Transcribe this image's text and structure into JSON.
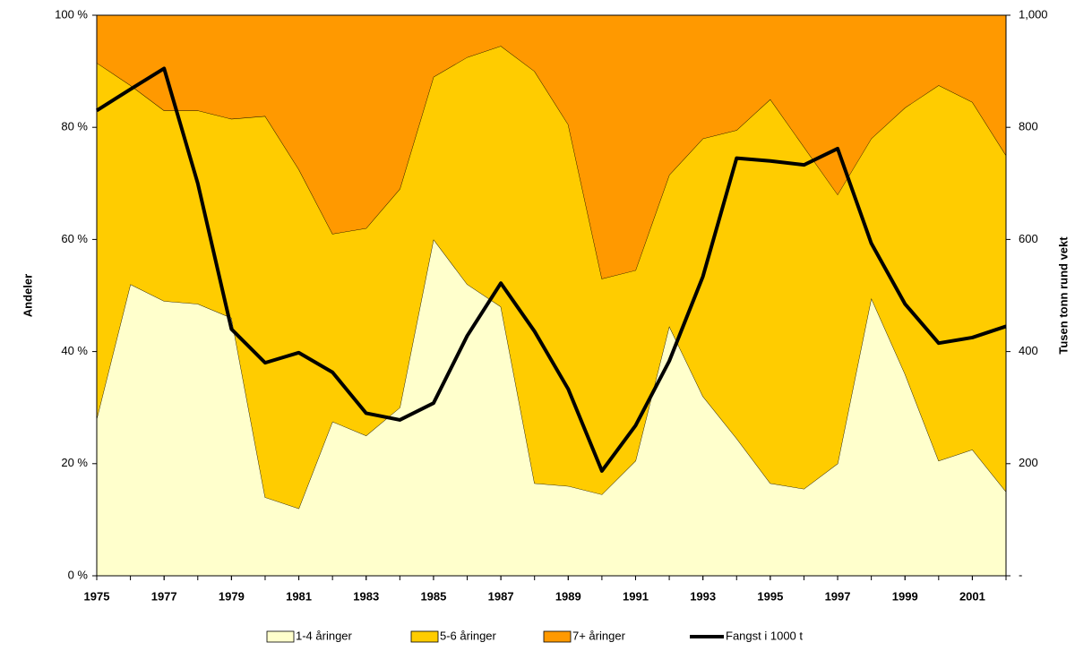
{
  "chart_data": {
    "type": "stacked_area",
    "x": [
      1975,
      1976,
      1977,
      1978,
      1979,
      1980,
      1981,
      1982,
      1983,
      1984,
      1985,
      1986,
      1987,
      1988,
      1989,
      1990,
      1991,
      1992,
      1993,
      1994,
      1995,
      1996,
      1997,
      1998,
      1999,
      2000,
      2001,
      2002
    ],
    "xlim": [
      1975,
      2002
    ],
    "xticks": [
      1975,
      1977,
      1979,
      1981,
      1983,
      1985,
      1987,
      1989,
      1991,
      1993,
      1995,
      1997,
      1999,
      2001
    ],
    "ylabel": "Andeler",
    "y2label": "Tusen tonn rund vekt",
    "ylim": [
      0,
      100
    ],
    "yticks": [
      {
        "value": 0,
        "label": "0 %"
      },
      {
        "value": 20,
        "label": "20 %"
      },
      {
        "value": 40,
        "label": "40 %"
      },
      {
        "value": 60,
        "label": "60 %"
      },
      {
        "value": 80,
        "label": "80 %"
      },
      {
        "value": 100,
        "label": "100 %"
      }
    ],
    "y2lim": [
      0,
      1000
    ],
    "y2ticks": [
      {
        "value": 0,
        "label": "-"
      },
      200,
      400,
      600,
      800,
      {
        "value": 1000,
        "label": "1,000"
      }
    ],
    "legend": "bottom",
    "series": [
      {
        "name": "1-4 åringer",
        "color": "#ffffcc",
        "values": [
          28,
          52,
          49,
          48.5,
          46,
          14,
          12,
          27.5,
          25,
          30,
          60,
          52,
          48,
          16.5,
          16,
          14.5,
          20.5,
          44.5,
          32,
          24.5,
          16.5,
          15.5,
          20,
          49.5,
          36,
          20.5,
          22.5,
          15
        ]
      },
      {
        "name": "5-6 åringer",
        "color": "#ffcc00",
        "values": [
          63.5,
          35.5,
          34,
          34.5,
          35.5,
          68,
          60.5,
          33.5,
          37,
          39,
          29,
          40.5,
          46.5,
          73.5,
          64.5,
          38.5,
          34,
          27,
          46,
          55,
          68.5,
          61,
          48,
          28.5,
          47.5,
          67,
          62,
          60
        ]
      },
      {
        "name": "7+ åringer",
        "color": "#ff9900",
        "values": [
          8.5,
          12.5,
          17,
          17,
          18.5,
          18,
          27.5,
          39,
          38,
          31,
          11,
          7.5,
          5.5,
          10,
          19.5,
          47,
          45.5,
          28.5,
          22,
          20.5,
          15,
          23.5,
          32,
          22,
          16.5,
          12.5,
          15.5,
          25
        ]
      },
      {
        "name": "Fangst i 1000 t",
        "color": "#000000",
        "type": "line",
        "axis": "y2",
        "values": [
          830,
          868,
          905,
          700,
          440,
          380,
          398,
          363,
          290,
          278,
          308,
          428,
          522,
          436,
          333,
          187,
          268,
          383,
          534,
          745,
          740,
          733,
          762,
          593,
          485,
          415,
          425,
          445
        ]
      }
    ]
  }
}
